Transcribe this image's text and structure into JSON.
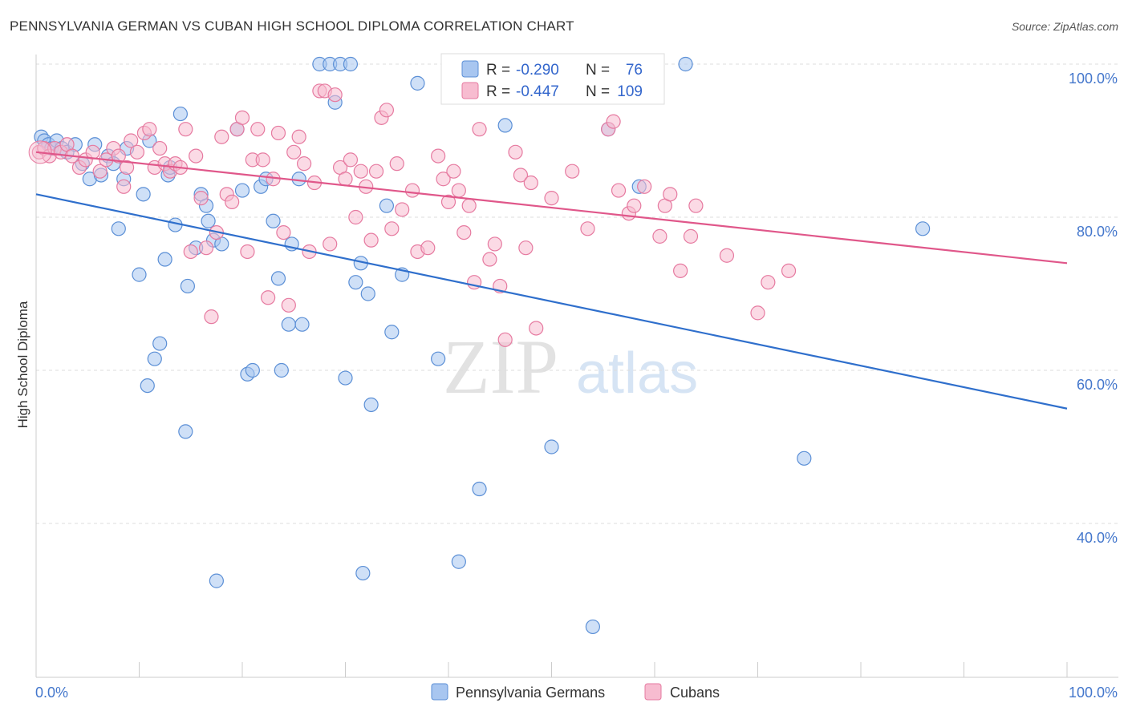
{
  "title": "PENNSYLVANIA GERMAN VS CUBAN HIGH SCHOOL DIPLOMA CORRELATION CHART",
  "source": "Source: ZipAtlas.com",
  "watermark": {
    "zip": "ZIP",
    "atlas": "atlas"
  },
  "legend_top": [
    {
      "r_label": "R =",
      "r_value": "-0.290",
      "n_label": "N =",
      "n_value": "76",
      "color": "#a8c6f0",
      "stroke": "#5b8fd6"
    },
    {
      "r_label": "R =",
      "r_value": "-0.447",
      "n_label": "N =",
      "n_value": "109",
      "color": "#f7bcd0",
      "stroke": "#e67aa0"
    }
  ],
  "legend_bottom": [
    {
      "label": "Pennsylvania Germans",
      "color": "#a8c6f0",
      "stroke": "#5b8fd6"
    },
    {
      "label": "Cubans",
      "color": "#f7bcd0",
      "stroke": "#e67aa0"
    }
  ],
  "chart_data": {
    "type": "scatter",
    "title": "PENNSYLVANIA GERMAN VS CUBAN HIGH SCHOOL DIPLOMA CORRELATION CHART",
    "xlabel": "",
    "ylabel": "High School Diploma",
    "xlim": [
      0,
      100
    ],
    "ylim": [
      20,
      102
    ],
    "x_ticks": [
      "0.0%",
      "100.0%"
    ],
    "y_ticks": [
      {
        "value": 100,
        "label": "100.0%"
      },
      {
        "value": 80,
        "label": "80.0%"
      },
      {
        "value": 60,
        "label": "60.0%"
      },
      {
        "value": 40,
        "label": "40.0%"
      }
    ],
    "grid": true,
    "legend_position": "top-center",
    "series": [
      {
        "name": "Pennsylvania Germans",
        "color": "#a8c6f0",
        "stroke": "#5b8fd6",
        "line_color": "#2f6fcc",
        "trend": {
          "x": [
            0,
            100
          ],
          "y": [
            83.0,
            55.0
          ]
        },
        "points": [
          [
            0.5,
            90.5
          ],
          [
            0.8,
            90.0
          ],
          [
            1.2,
            89.5
          ],
          [
            1.5,
            89.0
          ],
          [
            2.0,
            90.0
          ],
          [
            2.5,
            89.0
          ],
          [
            3.0,
            88.5
          ],
          [
            3.8,
            89.5
          ],
          [
            4.5,
            87.0
          ],
          [
            5.2,
            85.0
          ],
          [
            5.7,
            89.5
          ],
          [
            6.3,
            85.5
          ],
          [
            7.0,
            88.0
          ],
          [
            7.5,
            87.0
          ],
          [
            8.0,
            78.5
          ],
          [
            8.5,
            85.0
          ],
          [
            8.8,
            89.0
          ],
          [
            10.0,
            72.5
          ],
          [
            10.4,
            83.0
          ],
          [
            10.8,
            58.0
          ],
          [
            11.0,
            90.0
          ],
          [
            11.5,
            61.5
          ],
          [
            12.0,
            63.5
          ],
          [
            12.5,
            74.5
          ],
          [
            12.8,
            85.5
          ],
          [
            13.0,
            86.5
          ],
          [
            13.5,
            79.0
          ],
          [
            14.0,
            93.5
          ],
          [
            14.5,
            52.0
          ],
          [
            14.7,
            71.0
          ],
          [
            15.5,
            76.0
          ],
          [
            16.0,
            83.0
          ],
          [
            16.5,
            81.5
          ],
          [
            16.7,
            79.5
          ],
          [
            17.2,
            77.0
          ],
          [
            17.5,
            32.5
          ],
          [
            18.0,
            76.5
          ],
          [
            19.5,
            91.5
          ],
          [
            20.0,
            83.5
          ],
          [
            20.5,
            59.5
          ],
          [
            21.0,
            60.0
          ],
          [
            21.8,
            84.0
          ],
          [
            22.3,
            85.0
          ],
          [
            23.0,
            79.5
          ],
          [
            23.5,
            72.0
          ],
          [
            23.8,
            60.0
          ],
          [
            24.5,
            66.0
          ],
          [
            24.8,
            76.5
          ],
          [
            25.5,
            85.0
          ],
          [
            25.8,
            66.0
          ],
          [
            27.5,
            100.0
          ],
          [
            28.5,
            100.0
          ],
          [
            29.5,
            100.0
          ],
          [
            29.0,
            95.0
          ],
          [
            30.0,
            59.0
          ],
          [
            30.5,
            100.0
          ],
          [
            31.0,
            71.5
          ],
          [
            31.5,
            74.0
          ],
          [
            31.7,
            33.5
          ],
          [
            32.5,
            55.5
          ],
          [
            32.2,
            70.0
          ],
          [
            34.0,
            81.5
          ],
          [
            34.5,
            65.0
          ],
          [
            35.5,
            72.5
          ],
          [
            37.0,
            97.5
          ],
          [
            39.0,
            61.5
          ],
          [
            41.0,
            35.0
          ],
          [
            43.0,
            44.5
          ],
          [
            45.5,
            92.0
          ],
          [
            50.0,
            50.0
          ],
          [
            54.0,
            26.5
          ],
          [
            55.5,
            91.5
          ],
          [
            58.5,
            84.0
          ],
          [
            63.0,
            100.0
          ],
          [
            74.5,
            48.5
          ],
          [
            86.0,
            78.5
          ]
        ]
      },
      {
        "name": "Cubans",
        "color": "#f7bcd0",
        "stroke": "#e67aa0",
        "line_color": "#e0578a",
        "trend": {
          "x": [
            0,
            100
          ],
          "y": [
            88.5,
            74.0
          ]
        },
        "points": [
          [
            0.3,
            88.5
          ],
          [
            0.8,
            89.0
          ],
          [
            1.3,
            88.0
          ],
          [
            1.8,
            89.0
          ],
          [
            2.4,
            88.5
          ],
          [
            3.0,
            89.5
          ],
          [
            3.5,
            88.0
          ],
          [
            4.2,
            86.5
          ],
          [
            4.8,
            87.5
          ],
          [
            5.5,
            88.5
          ],
          [
            6.2,
            86.0
          ],
          [
            6.8,
            87.5
          ],
          [
            7.5,
            89.0
          ],
          [
            8.0,
            88.0
          ],
          [
            8.5,
            84.0
          ],
          [
            8.8,
            86.5
          ],
          [
            9.2,
            90.0
          ],
          [
            9.8,
            88.5
          ],
          [
            10.5,
            91.0
          ],
          [
            11.0,
            91.5
          ],
          [
            11.5,
            86.5
          ],
          [
            12.0,
            89.0
          ],
          [
            12.5,
            87.0
          ],
          [
            13.0,
            86.0
          ],
          [
            13.5,
            87.0
          ],
          [
            14.0,
            86.5
          ],
          [
            14.5,
            91.5
          ],
          [
            15.0,
            75.5
          ],
          [
            15.5,
            88.0
          ],
          [
            16.0,
            82.5
          ],
          [
            16.5,
            76.0
          ],
          [
            17.0,
            67.0
          ],
          [
            17.5,
            78.0
          ],
          [
            18.0,
            90.5
          ],
          [
            18.5,
            83.0
          ],
          [
            19.0,
            82.0
          ],
          [
            19.5,
            91.5
          ],
          [
            20.0,
            93.0
          ],
          [
            20.5,
            75.5
          ],
          [
            21.0,
            87.5
          ],
          [
            21.5,
            91.5
          ],
          [
            22.0,
            87.5
          ],
          [
            22.5,
            69.5
          ],
          [
            23.0,
            85.0
          ],
          [
            23.5,
            91.0
          ],
          [
            24.0,
            78.0
          ],
          [
            24.5,
            68.5
          ],
          [
            25.0,
            88.5
          ],
          [
            25.5,
            90.5
          ],
          [
            26.0,
            87.0
          ],
          [
            26.5,
            75.5
          ],
          [
            27.0,
            84.5
          ],
          [
            27.5,
            96.5
          ],
          [
            28.0,
            96.5
          ],
          [
            28.5,
            76.5
          ],
          [
            29.0,
            96.0
          ],
          [
            29.5,
            86.5
          ],
          [
            30.0,
            85.0
          ],
          [
            30.5,
            87.5
          ],
          [
            31.0,
            80.0
          ],
          [
            31.5,
            86.0
          ],
          [
            32.0,
            84.0
          ],
          [
            32.5,
            77.0
          ],
          [
            33.0,
            86.0
          ],
          [
            33.5,
            93.0
          ],
          [
            34.0,
            94.0
          ],
          [
            34.5,
            78.5
          ],
          [
            35.0,
            87.0
          ],
          [
            35.5,
            81.0
          ],
          [
            36.5,
            83.5
          ],
          [
            37.0,
            75.5
          ],
          [
            38.0,
            76.0
          ],
          [
            39.0,
            88.0
          ],
          [
            39.5,
            85.0
          ],
          [
            40.0,
            82.0
          ],
          [
            40.5,
            86.0
          ],
          [
            41.0,
            83.5
          ],
          [
            41.5,
            78.0
          ],
          [
            42.0,
            81.5
          ],
          [
            42.5,
            71.5
          ],
          [
            43.0,
            91.5
          ],
          [
            44.0,
            74.5
          ],
          [
            44.5,
            76.5
          ],
          [
            45.0,
            71.0
          ],
          [
            45.5,
            64.0
          ],
          [
            46.5,
            88.5
          ],
          [
            47.0,
            85.5
          ],
          [
            47.5,
            76.0
          ],
          [
            48.0,
            84.5
          ],
          [
            48.5,
            65.5
          ],
          [
            50.0,
            82.5
          ],
          [
            52.0,
            86.0
          ],
          [
            53.5,
            78.5
          ],
          [
            55.5,
            91.5
          ],
          [
            56.0,
            92.5
          ],
          [
            56.5,
            83.5
          ],
          [
            57.5,
            80.5
          ],
          [
            58.0,
            81.5
          ],
          [
            59.0,
            84.0
          ],
          [
            60.5,
            77.5
          ],
          [
            61.0,
            81.5
          ],
          [
            61.5,
            83.0
          ],
          [
            62.5,
            73.0
          ],
          [
            63.5,
            77.5
          ],
          [
            64.0,
            81.5
          ],
          [
            67.0,
            75.0
          ],
          [
            70.0,
            67.5
          ],
          [
            71.0,
            71.5
          ],
          [
            73.0,
            73.0
          ]
        ]
      }
    ]
  }
}
